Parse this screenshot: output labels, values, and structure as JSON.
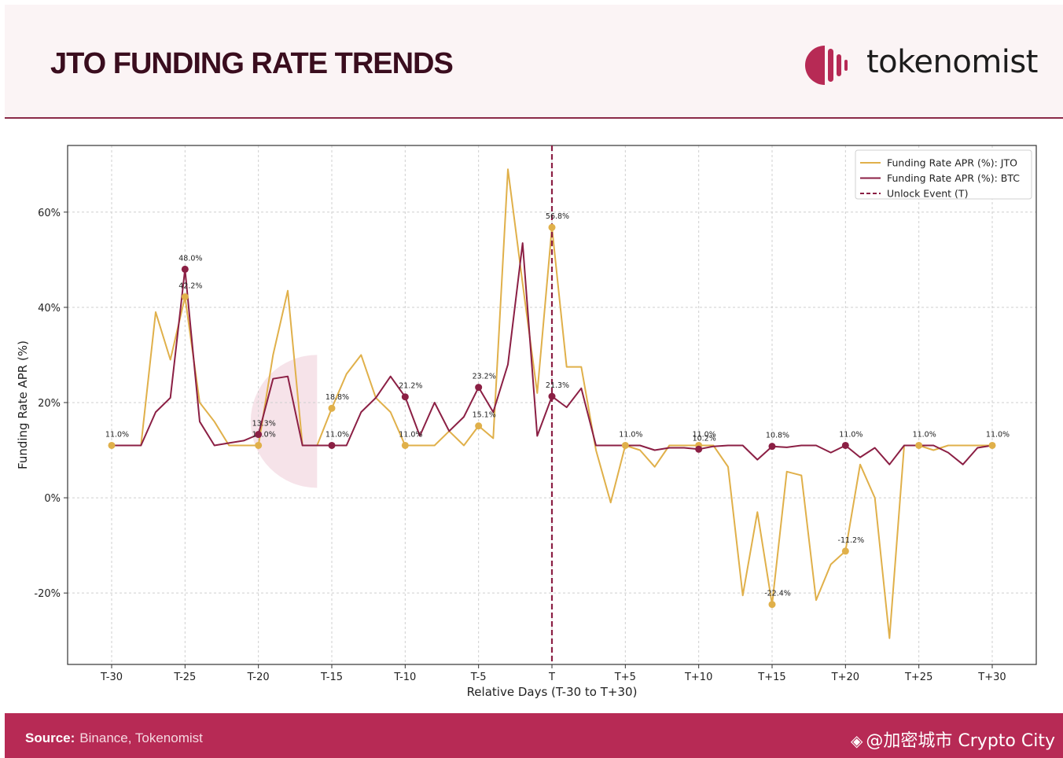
{
  "header": {
    "title": "JTO FUNDING RATE TRENDS",
    "brand": "tokenomist"
  },
  "footer": {
    "source_label": "Source:",
    "source_text": "Binance, Tokenomist",
    "watermark": "@加密城市 Crypto City"
  },
  "colors": {
    "jto": "#e0b04a",
    "btc": "#8b1f44",
    "accent": "#b72a55",
    "title": "#3a0d1e"
  },
  "icons": {
    "logo": "tokenomist-logo-icon",
    "watermark": "binance-diamond-icon"
  },
  "chart_data": {
    "type": "line",
    "title": "",
    "xlabel": "Relative Days (T-30 to T+30)",
    "ylabel": "Funding Rate APR (%)",
    "xlim": [
      -33,
      33
    ],
    "ylim": [
      -35,
      74
    ],
    "yticks": [
      -20,
      0,
      20,
      40,
      60
    ],
    "ytick_labels": [
      "-20%",
      "0%",
      "20%",
      "40%",
      "60%"
    ],
    "xticks": [
      -30,
      -25,
      -20,
      -15,
      -10,
      -5,
      0,
      5,
      10,
      15,
      20,
      25,
      30
    ],
    "xtick_labels": [
      "T-30",
      "T-25",
      "T-20",
      "T-15",
      "T-10",
      "T-5",
      "T",
      "T+5",
      "T+10",
      "T+15",
      "T+20",
      "T+25",
      "T+30"
    ],
    "grid": true,
    "legend_position": "top-right",
    "legend": [
      "Funding Rate APR (%): JTO",
      "Funding Rate APR (%): BTC",
      "Unlock Event (T)"
    ],
    "unlock_x": 0,
    "series": [
      {
        "name": "Funding Rate APR (%): JTO",
        "x": [
          -30,
          -29,
          -28,
          -27,
          -26,
          -25,
          -24,
          -23,
          -22,
          -21,
          -20,
          -19,
          -18,
          -17,
          -16,
          -15,
          -14,
          -13,
          -12,
          -11,
          -10,
          -9,
          -8,
          -7,
          -6,
          -5,
          -4,
          -3,
          -2,
          -1,
          0,
          1,
          2,
          3,
          4,
          5,
          6,
          7,
          8,
          9,
          10,
          11,
          12,
          13,
          14,
          15,
          16,
          17,
          18,
          19,
          20,
          21,
          22,
          23,
          24,
          25,
          26,
          27,
          28,
          29,
          30
        ],
        "y": [
          11.0,
          11.0,
          11.0,
          39.0,
          29.0,
          42.2,
          20.0,
          16.0,
          11.0,
          11.0,
          11.0,
          30.0,
          43.5,
          11.0,
          11.0,
          18.8,
          26.0,
          30.0,
          21.0,
          18.0,
          11.0,
          11.0,
          11.0,
          14.0,
          11.0,
          15.1,
          12.5,
          69.0,
          45.0,
          22.0,
          56.8,
          27.5,
          27.5,
          10.0,
          -1.0,
          11.0,
          10.0,
          6.5,
          11.0,
          11.0,
          11.0,
          11.0,
          6.5,
          -20.5,
          -3.0,
          -22.4,
          5.5,
          4.7,
          -21.5,
          -14.0,
          -11.2,
          7.0,
          0.0,
          -29.5,
          11.0,
          11.0,
          10.0,
          11.0,
          11.0,
          11.0,
          11.0
        ],
        "markers": [
          {
            "x": -30,
            "y": 11.0,
            "label": "11.0%"
          },
          {
            "x": -25,
            "y": 42.2,
            "label": "42.2%"
          },
          {
            "x": -20,
            "y": 11.0,
            "label": "11.0%"
          },
          {
            "x": -15,
            "y": 18.8,
            "label": "18.8%"
          },
          {
            "x": -10,
            "y": 11.0,
            "label": "11.0%"
          },
          {
            "x": -5,
            "y": 15.1,
            "label": "15.1%"
          },
          {
            "x": 0,
            "y": 56.8,
            "label": "56.8%"
          },
          {
            "x": 5,
            "y": 11.0,
            "label": "11.0%"
          },
          {
            "x": 10,
            "y": 11.0,
            "label": "11.0%"
          },
          {
            "x": 15,
            "y": -22.4,
            "label": "-22.4%"
          },
          {
            "x": 20,
            "y": -11.2,
            "label": "-11.2%"
          },
          {
            "x": 25,
            "y": 11.0,
            "label": "11.0%"
          },
          {
            "x": 30,
            "y": 11.0,
            "label": "11.0%"
          }
        ]
      },
      {
        "name": "Funding Rate APR (%): BTC",
        "x": [
          -30,
          -29,
          -28,
          -27,
          -26,
          -25,
          -24,
          -23,
          -22,
          -21,
          -20,
          -19,
          -18,
          -17,
          -16,
          -15,
          -14,
          -13,
          -12,
          -11,
          -10,
          -9,
          -8,
          -7,
          -6,
          -5,
          -4,
          -3,
          -2,
          -1,
          0,
          1,
          2,
          3,
          4,
          5,
          6,
          7,
          8,
          9,
          10,
          11,
          12,
          13,
          14,
          15,
          16,
          17,
          18,
          19,
          20,
          21,
          22,
          23,
          24,
          25,
          26,
          27,
          28,
          29,
          30
        ],
        "y": [
          11.0,
          11.0,
          11.0,
          18.0,
          21.0,
          48.0,
          16.0,
          11.0,
          11.5,
          12.0,
          13.3,
          25.0,
          25.5,
          11.0,
          11.0,
          11.0,
          11.0,
          18.0,
          21.0,
          25.5,
          21.2,
          13.0,
          20.0,
          14.0,
          17.0,
          23.2,
          18.0,
          28.0,
          53.5,
          13.0,
          21.3,
          19.0,
          23.0,
          11.0,
          11.0,
          11.0,
          11.0,
          10.0,
          10.5,
          10.5,
          10.2,
          10.8,
          11.0,
          11.0,
          8.0,
          10.8,
          10.6,
          11.0,
          11.0,
          9.5,
          11.0,
          8.5,
          10.5,
          7.0,
          11.0,
          11.0,
          11.0,
          9.5,
          7.0,
          10.5,
          11.0
        ],
        "markers": [
          {
            "x": -25,
            "y": 48.0,
            "label": "48.0%"
          },
          {
            "x": -20,
            "y": 13.3,
            "label": "13.3%"
          },
          {
            "x": -15,
            "y": 11.0,
            "label": "11.0%"
          },
          {
            "x": -10,
            "y": 21.2,
            "label": "21.2%"
          },
          {
            "x": -5,
            "y": 23.2,
            "label": "23.2%"
          },
          {
            "x": 0,
            "y": 21.3,
            "label": "21.3%"
          },
          {
            "x": 10,
            "y": 10.2,
            "label": "10.2%"
          },
          {
            "x": 15,
            "y": 10.8,
            "label": "10.8%"
          },
          {
            "x": 20,
            "y": 11.0,
            "label": "11.0%"
          }
        ]
      }
    ]
  }
}
